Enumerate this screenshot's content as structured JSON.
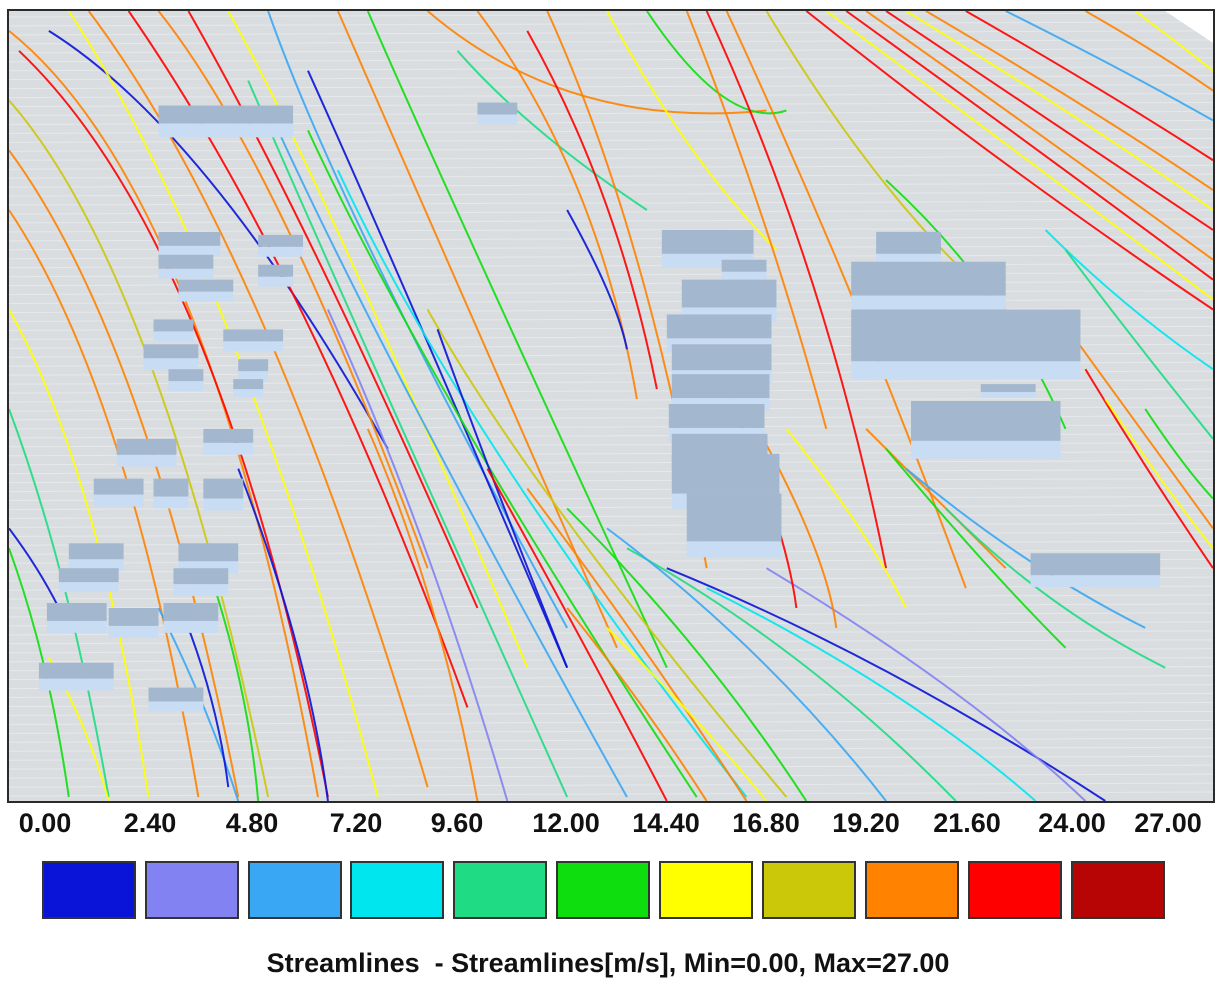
{
  "legend": {
    "ticks": [
      "0.00",
      "2.40",
      "4.80",
      "7.20",
      "9.60",
      "12.00",
      "14.40",
      "16.80",
      "19.20",
      "21.60",
      "24.00",
      "27.00"
    ],
    "colors": [
      "#0a14d8",
      "#8282f2",
      "#3aa7f4",
      "#00e6ee",
      "#1edb84",
      "#0ede0e",
      "#ffff00",
      "#cbc80a",
      "#ff8200",
      "#ff0000",
      "#b70404"
    ],
    "caption": "Streamlines  - Streamlines[m/s], Min=0.00, Max=27.00"
  },
  "scene": {
    "background_color": "#d9dde0",
    "building_top_color": "#a3b7cf",
    "building_side_color": "#c8dcf4"
  }
}
